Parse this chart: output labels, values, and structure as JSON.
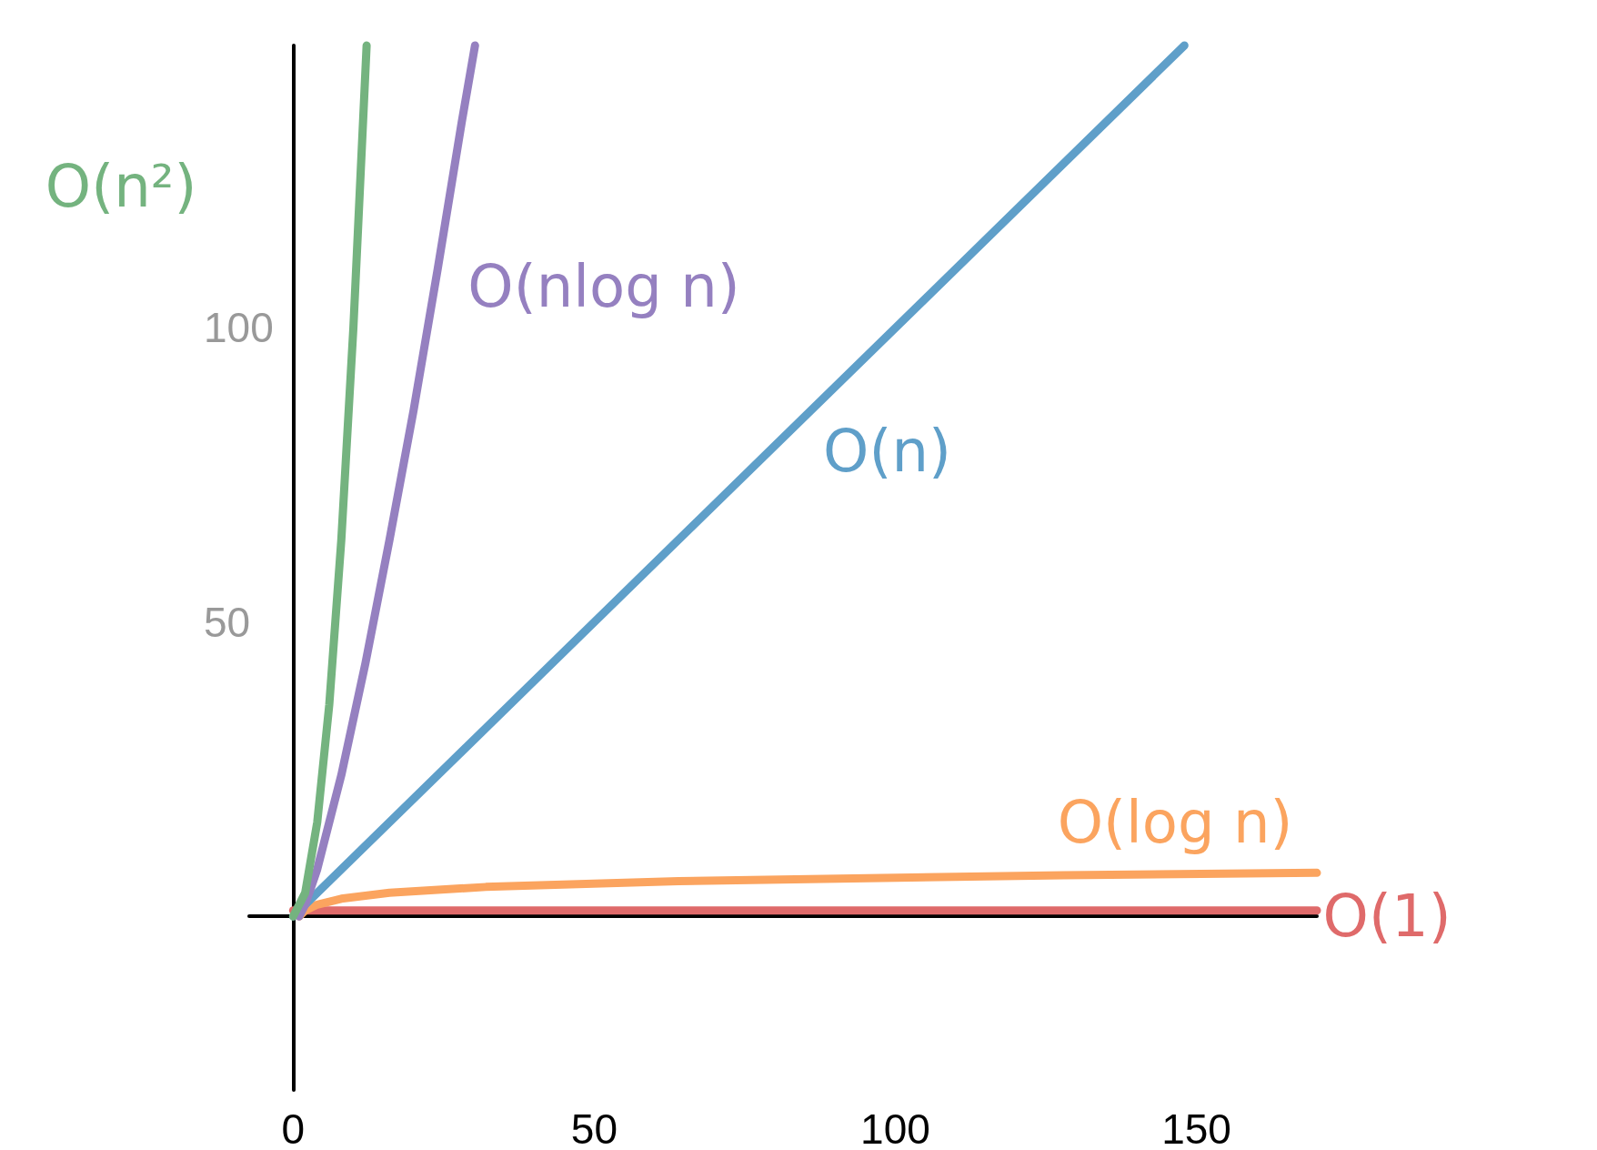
{
  "chart_data": {
    "type": "line",
    "xlim": [
      -7.3,
      170
    ],
    "ylim": [
      -29.5,
      148
    ],
    "xticks": [
      0,
      50,
      100,
      150
    ],
    "yticks": [
      50,
      100
    ],
    "grid": false,
    "legend": false,
    "marker": "none",
    "line_style": "solid",
    "series": [
      {
        "name": "O(n²)",
        "color": "#74b37f",
        "x": [
          0,
          2,
          4,
          6,
          8,
          10,
          12.2
        ],
        "values": [
          0,
          4,
          16,
          36,
          64,
          100,
          148
        ]
      },
      {
        "name": "O(nlog n)",
        "color": "#9580c0",
        "x": [
          1,
          2,
          4,
          8,
          12,
          16,
          20,
          24,
          28,
          30.2
        ],
        "values": [
          0,
          2,
          8,
          24,
          43,
          64,
          86,
          110,
          135,
          148
        ]
      },
      {
        "name": "O(n)",
        "color": "#5f9fc9",
        "x": [
          0,
          148
        ],
        "values": [
          0,
          148
        ]
      },
      {
        "name": "O(log n)",
        "color": "#fba45f",
        "x": [
          1,
          2,
          4,
          8,
          16,
          32,
          64,
          128,
          170
        ],
        "values": [
          0,
          1,
          2,
          3,
          4,
          5,
          6,
          7,
          7.4
        ]
      },
      {
        "name": "O(1)",
        "color": "#df6a6a",
        "x": [
          0,
          170
        ],
        "values": [
          1,
          1
        ]
      }
    ]
  }
}
